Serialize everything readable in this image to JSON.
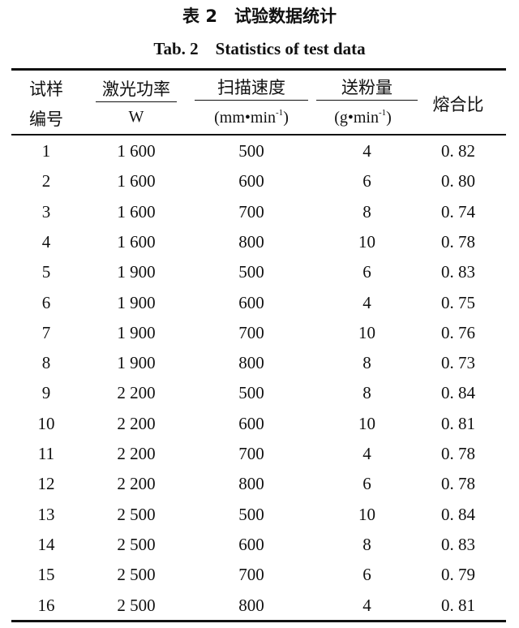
{
  "caption": {
    "title_cn": "表 2　试验数据统计",
    "title_en": "Tab. 2　Statistics of test data"
  },
  "table": {
    "headers": [
      {
        "line1": "试样",
        "line2": "编号"
      },
      {
        "name": "激光功率",
        "unit": "W"
      },
      {
        "name": "扫描速度",
        "unit_base": "(mm•min",
        "unit_exp": "-1",
        "unit_close": ")"
      },
      {
        "name": "送粉量",
        "unit_base": "(g•min",
        "unit_exp": "-1",
        "unit_close": ")"
      },
      {
        "name": "熔合比"
      }
    ],
    "rows": [
      [
        "1",
        "1 600",
        "500",
        "4",
        "0. 82"
      ],
      [
        "2",
        "1 600",
        "600",
        "6",
        "0. 80"
      ],
      [
        "3",
        "1 600",
        "700",
        "8",
        "0. 74"
      ],
      [
        "4",
        "1 600",
        "800",
        "10",
        "0. 78"
      ],
      [
        "5",
        "1 900",
        "500",
        "6",
        "0. 83"
      ],
      [
        "6",
        "1 900",
        "600",
        "4",
        "0. 75"
      ],
      [
        "7",
        "1 900",
        "700",
        "10",
        "0. 76"
      ],
      [
        "8",
        "1 900",
        "800",
        "8",
        "0. 73"
      ],
      [
        "9",
        "2 200",
        "500",
        "8",
        "0. 84"
      ],
      [
        "10",
        "2 200",
        "600",
        "10",
        "0. 81"
      ],
      [
        "11",
        "2 200",
        "700",
        "4",
        "0. 78"
      ],
      [
        "12",
        "2 200",
        "800",
        "6",
        "0. 78"
      ],
      [
        "13",
        "2 500",
        "500",
        "10",
        "0. 84"
      ],
      [
        "14",
        "2 500",
        "600",
        "8",
        "0. 83"
      ],
      [
        "15",
        "2 500",
        "700",
        "6",
        "0. 79"
      ],
      [
        "16",
        "2 500",
        "800",
        "4",
        "0. 81"
      ]
    ]
  }
}
